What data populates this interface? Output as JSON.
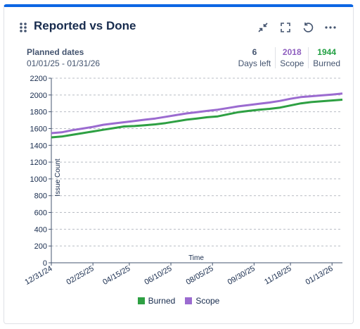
{
  "card": {
    "title": "Reported vs Done",
    "accent": "#0c66e4",
    "actions": [
      "minimize-icon",
      "fullscreen-icon",
      "refresh-icon",
      "more-icon"
    ]
  },
  "meta": {
    "label": "Planned dates",
    "range": "01/01/25 - 01/31/26"
  },
  "stats": [
    {
      "value": "6",
      "label": "Days left",
      "color": "#44546f"
    },
    {
      "value": "2018",
      "label": "Scope",
      "color": "#8f5fbf"
    },
    {
      "value": "1944",
      "label": "Burned",
      "color": "#22a043"
    }
  ],
  "chart_data": {
    "type": "line",
    "xlabel": "Time",
    "ylabel": "Issue Count",
    "ylim": [
      0,
      2200
    ],
    "yticks": [
      0,
      200,
      400,
      600,
      800,
      1000,
      1200,
      1400,
      1600,
      1800,
      2000,
      2200
    ],
    "xticks": [
      "12/31/24",
      "02/25/25",
      "04/15/25",
      "06/10/25",
      "08/05/25",
      "09/30/25",
      "11/18/25",
      "01/13/26"
    ],
    "grid": true,
    "legend_position": "bottom",
    "x": [
      "12/31/24",
      "01/14/25",
      "01/28/25",
      "02/11/25",
      "02/25/25",
      "03/11/25",
      "03/25/25",
      "04/08/25",
      "04/22/25",
      "05/06/25",
      "05/20/25",
      "06/03/25",
      "06/17/25",
      "07/01/25",
      "07/15/25",
      "07/29/25",
      "08/12/25",
      "08/26/25",
      "09/09/25",
      "09/23/25",
      "10/07/25",
      "10/21/25",
      "11/04/25",
      "11/18/25",
      "12/02/25",
      "12/16/25",
      "12/30/25",
      "01/13/26",
      "01/27/26"
    ],
    "series": [
      {
        "name": "Burned",
        "color": "#2ea043",
        "values": [
          1495,
          1505,
          1525,
          1545,
          1565,
          1585,
          1605,
          1625,
          1630,
          1640,
          1650,
          1665,
          1685,
          1705,
          1720,
          1735,
          1745,
          1770,
          1795,
          1810,
          1825,
          1835,
          1850,
          1875,
          1900,
          1915,
          1925,
          1935,
          1944
        ]
      },
      {
        "name": "Scope",
        "color": "#9b6bd0",
        "values": [
          1545,
          1555,
          1580,
          1600,
          1620,
          1645,
          1660,
          1675,
          1690,
          1705,
          1720,
          1740,
          1760,
          1780,
          1795,
          1810,
          1825,
          1845,
          1865,
          1880,
          1895,
          1910,
          1930,
          1955,
          1975,
          1985,
          1995,
          2005,
          2018
        ]
      }
    ]
  }
}
